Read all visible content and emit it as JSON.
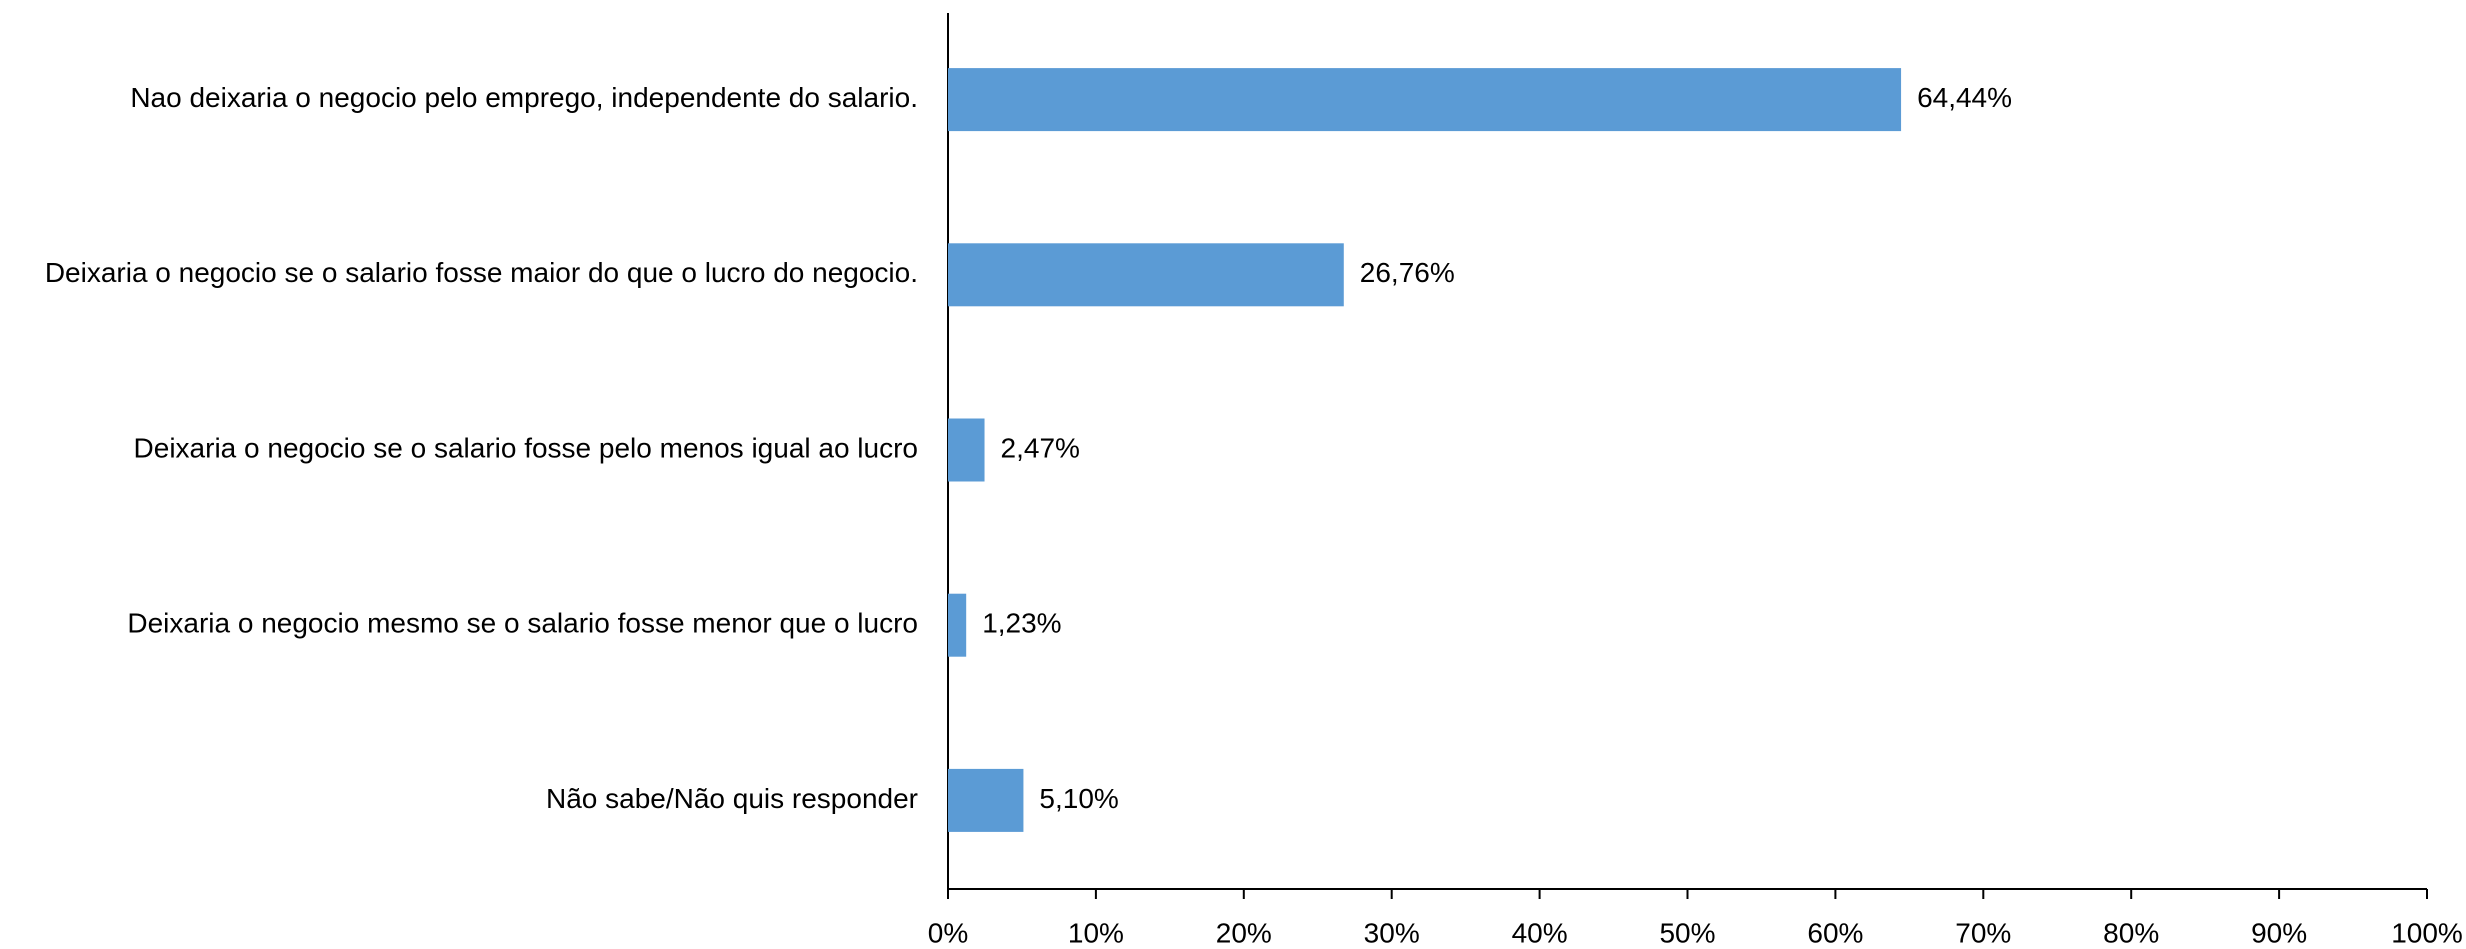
{
  "chart_data": {
    "type": "hbar",
    "categories": [
      "Nao deixaria o negocio pelo emprego, independente do salario.",
      "Deixaria o negocio se o salario fosse maior do que o lucro do negocio.",
      "Deixaria o negocio se o salario fosse pelo menos igual ao lucro",
      "Deixaria o negocio mesmo se o salario fosse menor que o lucro",
      "Não sabe/Não quis responder"
    ],
    "values": [
      64.44,
      26.76,
      2.47,
      1.23,
      5.1
    ],
    "value_labels": [
      "64,44%",
      "26,76%",
      "2,47%",
      "1,23%",
      "5,10%"
    ],
    "color": "#5b9bd5",
    "xlim": [
      0,
      100
    ],
    "xticks": [
      {
        "value": 0,
        "label": "0%"
      },
      {
        "value": 10,
        "label": "10%"
      },
      {
        "value": 20,
        "label": "20%"
      },
      {
        "value": 30,
        "label": "30%"
      },
      {
        "value": 40,
        "label": "40%"
      },
      {
        "value": 50,
        "label": "50%"
      },
      {
        "value": 60,
        "label": "60%"
      },
      {
        "value": 70,
        "label": "70%"
      },
      {
        "value": 80,
        "label": "80%"
      },
      {
        "value": 90,
        "label": "90%"
      },
      {
        "value": 100,
        "label": "100%"
      }
    ],
    "grid": false
  }
}
